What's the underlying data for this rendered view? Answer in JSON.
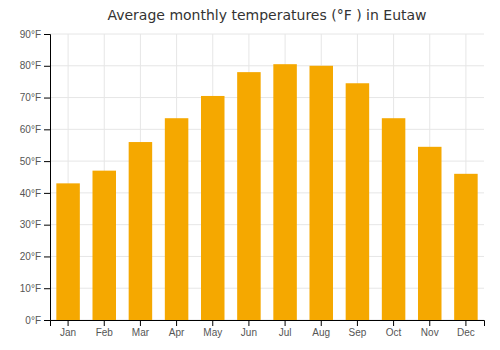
{
  "chart_data": {
    "type": "bar",
    "title": "Average monthly temperatures (°F ) in Eutaw",
    "categories": [
      "Jan",
      "Feb",
      "Mar",
      "Apr",
      "May",
      "Jun",
      "Jul",
      "Aug",
      "Sep",
      "Oct",
      "Nov",
      "Dec"
    ],
    "values": [
      43,
      47,
      56,
      63.5,
      70.5,
      78,
      80.5,
      80,
      74.5,
      63.5,
      54.5,
      46
    ],
    "color": "#F5A800",
    "ylim": [
      0,
      90
    ],
    "yticks": [
      {
        "value": 0,
        "label": "0°F"
      },
      {
        "value": 10,
        "label": "10°F"
      },
      {
        "value": 20,
        "label": "20°F"
      },
      {
        "value": 30,
        "label": "30°F"
      },
      {
        "value": 40,
        "label": "40°F"
      },
      {
        "value": 50,
        "label": "50°F"
      },
      {
        "value": 60,
        "label": "60°F"
      },
      {
        "value": 70,
        "label": "70°F"
      },
      {
        "value": 80,
        "label": "80°F"
      },
      {
        "value": 90,
        "label": "90°F"
      }
    ],
    "grid": true
  }
}
